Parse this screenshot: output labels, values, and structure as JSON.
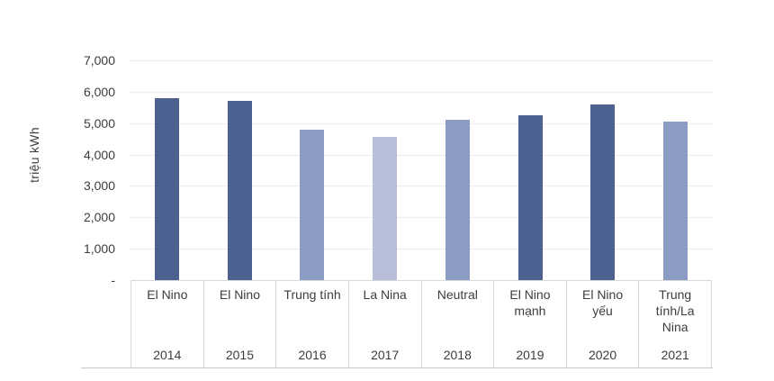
{
  "chart_data": {
    "type": "bar",
    "title": "",
    "ylabel": "triệu kWh",
    "ylim": [
      0,
      7000
    ],
    "ytick_step": 1000,
    "ytick_labels": [
      "-",
      "1,000",
      "2,000",
      "3,000",
      "4,000",
      "5,000",
      "6,000",
      "7,000"
    ],
    "grid": true,
    "legend": "none",
    "x_axis_levels": [
      "enso_condition",
      "year"
    ],
    "categories": [
      {
        "label": "El Nino",
        "label_display": "El Nino",
        "year": "2014",
        "value": 5800,
        "tone": "dark"
      },
      {
        "label": "El Nino",
        "label_display": "El Nino",
        "year": "2015",
        "value": 5700,
        "tone": "dark"
      },
      {
        "label": "Trung tính",
        "label_display": "Trung tính",
        "year": "2016",
        "value": 4800,
        "tone": "medium"
      },
      {
        "label": "La Nina",
        "label_display": "La Nina",
        "year": "2017",
        "value": 4550,
        "tone": "light"
      },
      {
        "label": "Neutral",
        "label_display": "Neutral",
        "year": "2018",
        "value": 5100,
        "tone": "medium"
      },
      {
        "label": "El Nino mạnh",
        "label_display": "El Nino\nmạnh",
        "year": "2019",
        "value": 5250,
        "tone": "dark"
      },
      {
        "label": "El Nino yếu",
        "label_display": "El Nino\nyếu",
        "year": "2020",
        "value": 5600,
        "tone": "dark"
      },
      {
        "label": "Trung tính/La Nina",
        "label_display": "Trung\ntính/La\nNina",
        "year": "2021",
        "value": 5050,
        "tone": "medium"
      }
    ],
    "colors": {
      "dark": "#4d6190",
      "medium": "#8d9cc4",
      "light": "#b6bed8"
    }
  },
  "style": {
    "grid_color": "#ececec",
    "table_border_color": "#d9d9d9",
    "baseline_color": "#c9c9c9",
    "text_color": "#3d3d3d",
    "background": "#ffffff"
  }
}
